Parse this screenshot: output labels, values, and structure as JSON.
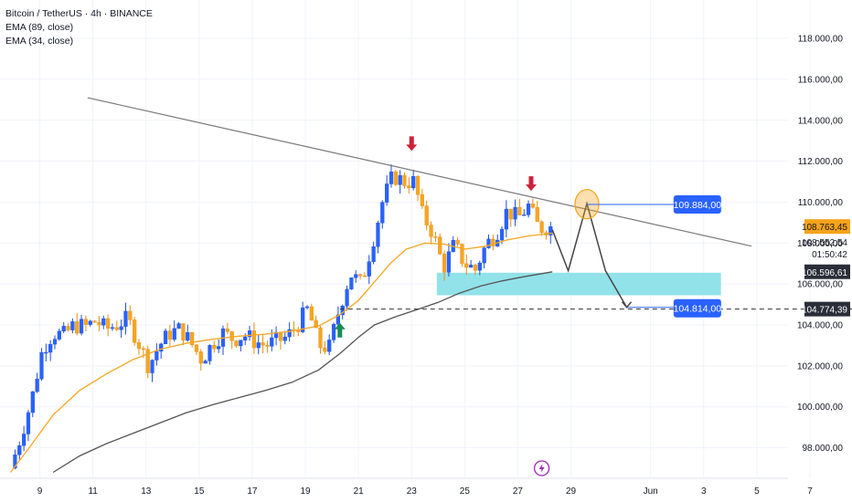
{
  "header": {
    "symbol_line": "Bitcoin / TetherUS · 4h · BINANCE",
    "indicators": [
      "EMA (89, close)",
      "EMA (34, close)"
    ]
  },
  "colors": {
    "up": "#2962ff",
    "down": "#f6a623",
    "ema34": "#f5a623",
    "ema89": "#555555",
    "trendline": "#7a7a7a",
    "zone": "#7fdde6",
    "arrow_down": "#d0213a",
    "arrow_up": "#1b8a5a",
    "label_blue": "#2962ff",
    "price_label": "#f7a21b",
    "price_box_dark": "#2a2e39",
    "circle": "#f7a21b"
  },
  "chart_data": {
    "type": "candlestick",
    "y_axis": {
      "min": 96800,
      "max": 119000,
      "ticks": [
        "118.000,00",
        "116.000,00",
        "114.000,00",
        "112.000,00",
        "110.000,00",
        "108.000,00",
        "106.000,00",
        "104.000,00",
        "102.000,00",
        "100.000,00",
        "98.000,00"
      ],
      "tick_values": [
        118000,
        116000,
        114000,
        112000,
        110000,
        108000,
        106000,
        104000,
        102000,
        100000,
        98000
      ]
    },
    "x_axis": {
      "ticks": [
        {
          "label": "9",
          "day": 9
        },
        {
          "label": "11",
          "day": 11
        },
        {
          "label": "13",
          "day": 13
        },
        {
          "label": "15",
          "day": 15
        },
        {
          "label": "17",
          "day": 17
        },
        {
          "label": "19",
          "day": 19
        },
        {
          "label": "21",
          "day": 21
        },
        {
          "label": "23",
          "day": 23
        },
        {
          "label": "25",
          "day": 25
        },
        {
          "label": "27",
          "day": 27
        },
        {
          "label": "29",
          "day": 29
        },
        {
          "label": "Jun",
          "day": 32
        },
        {
          "label": "3",
          "day": 34
        },
        {
          "label": "5",
          "day": 36
        },
        {
          "label": "7",
          "day": 38
        }
      ]
    },
    "anchor_points": [
      [
        7.9,
        97000
      ],
      [
        8.3,
        98600
      ],
      [
        8.7,
        100400
      ],
      [
        9.1,
        102800
      ],
      [
        9.5,
        103600
      ],
      [
        9.9,
        103500
      ],
      [
        10.3,
        104000
      ],
      [
        10.7,
        103900
      ],
      [
        11.1,
        104200
      ],
      [
        11.5,
        103800
      ],
      [
        11.9,
        104000
      ],
      [
        12.3,
        104300
      ],
      [
        12.7,
        103200
      ],
      [
        13.1,
        102000
      ],
      [
        13.5,
        103000
      ],
      [
        13.9,
        103600
      ],
      [
        14.3,
        103800
      ],
      [
        14.7,
        103100
      ],
      [
        15.1,
        102300
      ],
      [
        15.5,
        103100
      ],
      [
        15.9,
        103600
      ],
      [
        16.3,
        103300
      ],
      [
        16.7,
        103500
      ],
      [
        17.1,
        103200
      ],
      [
        17.5,
        103000
      ],
      [
        17.9,
        103200
      ],
      [
        18.3,
        103400
      ],
      [
        18.7,
        104000
      ],
      [
        19.1,
        104800
      ],
      [
        19.5,
        103000
      ],
      [
        19.9,
        102900
      ],
      [
        20.3,
        104900
      ],
      [
        20.7,
        106500
      ],
      [
        21.1,
        106000
      ],
      [
        21.5,
        107900
      ],
      [
        21.9,
        110000
      ],
      [
        22.3,
        111300
      ],
      [
        22.7,
        111000
      ],
      [
        23.1,
        111000
      ],
      [
        23.4,
        109400
      ],
      [
        23.8,
        108500
      ],
      [
        24.2,
        106800
      ],
      [
        24.6,
        107900
      ],
      [
        25.0,
        107000
      ],
      [
        25.4,
        106700
      ],
      [
        25.8,
        107900
      ],
      [
        26.2,
        108500
      ],
      [
        26.6,
        109600
      ],
      [
        27.0,
        109200
      ],
      [
        27.4,
        109800
      ],
      [
        27.8,
        108700
      ],
      [
        28.1,
        108800
      ],
      [
        28.3,
        108763
      ]
    ],
    "ema34_points": [
      [
        7.9,
        96800
      ],
      [
        8.6,
        98000
      ],
      [
        9.5,
        99600
      ],
      [
        10.5,
        100800
      ],
      [
        11.5,
        101600
      ],
      [
        12.5,
        102300
      ],
      [
        13.5,
        102800
      ],
      [
        14.5,
        103100
      ],
      [
        15.5,
        103300
      ],
      [
        16.5,
        103450
      ],
      [
        17.5,
        103550
      ],
      [
        18.5,
        103700
      ],
      [
        19.5,
        103950
      ],
      [
        20.3,
        104500
      ],
      [
        21.0,
        105200
      ],
      [
        21.6,
        106100
      ],
      [
        22.2,
        107000
      ],
      [
        22.8,
        107700
      ],
      [
        23.5,
        108000
      ],
      [
        24.2,
        107950
      ],
      [
        25.0,
        107700
      ],
      [
        25.8,
        107850
      ],
      [
        26.6,
        108150
      ],
      [
        27.4,
        108350
      ],
      [
        28.3,
        108480
      ]
    ],
    "ema89_points": [
      [
        9.5,
        96800
      ],
      [
        10.5,
        97600
      ],
      [
        11.5,
        98200
      ],
      [
        12.5,
        98700
      ],
      [
        13.5,
        99200
      ],
      [
        14.5,
        99700
      ],
      [
        15.5,
        100100
      ],
      [
        16.5,
        100450
      ],
      [
        17.5,
        100800
      ],
      [
        18.5,
        101200
      ],
      [
        19.5,
        101800
      ],
      [
        20.3,
        102600
      ],
      [
        21.0,
        103400
      ],
      [
        21.6,
        104000
      ],
      [
        22.4,
        104400
      ],
      [
        23.2,
        104750
      ],
      [
        24.0,
        105100
      ],
      [
        24.8,
        105550
      ],
      [
        25.6,
        105900
      ],
      [
        26.4,
        106150
      ],
      [
        27.2,
        106350
      ],
      [
        28.3,
        106597
      ]
    ],
    "trendline": [
      [
        10.8,
        115100
      ],
      [
        35.8,
        107850
      ]
    ],
    "support_zone": {
      "x0": 23.95,
      "x1": 34.65,
      "y0": 105450,
      "y1": 106550
    },
    "level_line": {
      "price": 104774,
      "x0": 20.3
    },
    "projection": [
      [
        28.3,
        108650
      ],
      [
        28.9,
        106650
      ],
      [
        29.6,
        109930
      ],
      [
        30.3,
        106650
      ],
      [
        31.1,
        104860
      ]
    ],
    "markers": {
      "down_arrows": [
        [
          23.0,
          112500
        ],
        [
          27.5,
          110550
        ]
      ],
      "up_arrow": [
        20.3,
        104100
      ],
      "circle": [
        29.6,
        109900
      ]
    },
    "annotations": {
      "target_high": "109.884,00",
      "target_low": "104.814,00"
    },
    "price_labels": {
      "last_price": "108.763,45",
      "last_close_small": "108.552,54",
      "countdown": "01:50:42",
      "ema89_value": "106.596,61",
      "level_value": "104.774,39"
    }
  }
}
